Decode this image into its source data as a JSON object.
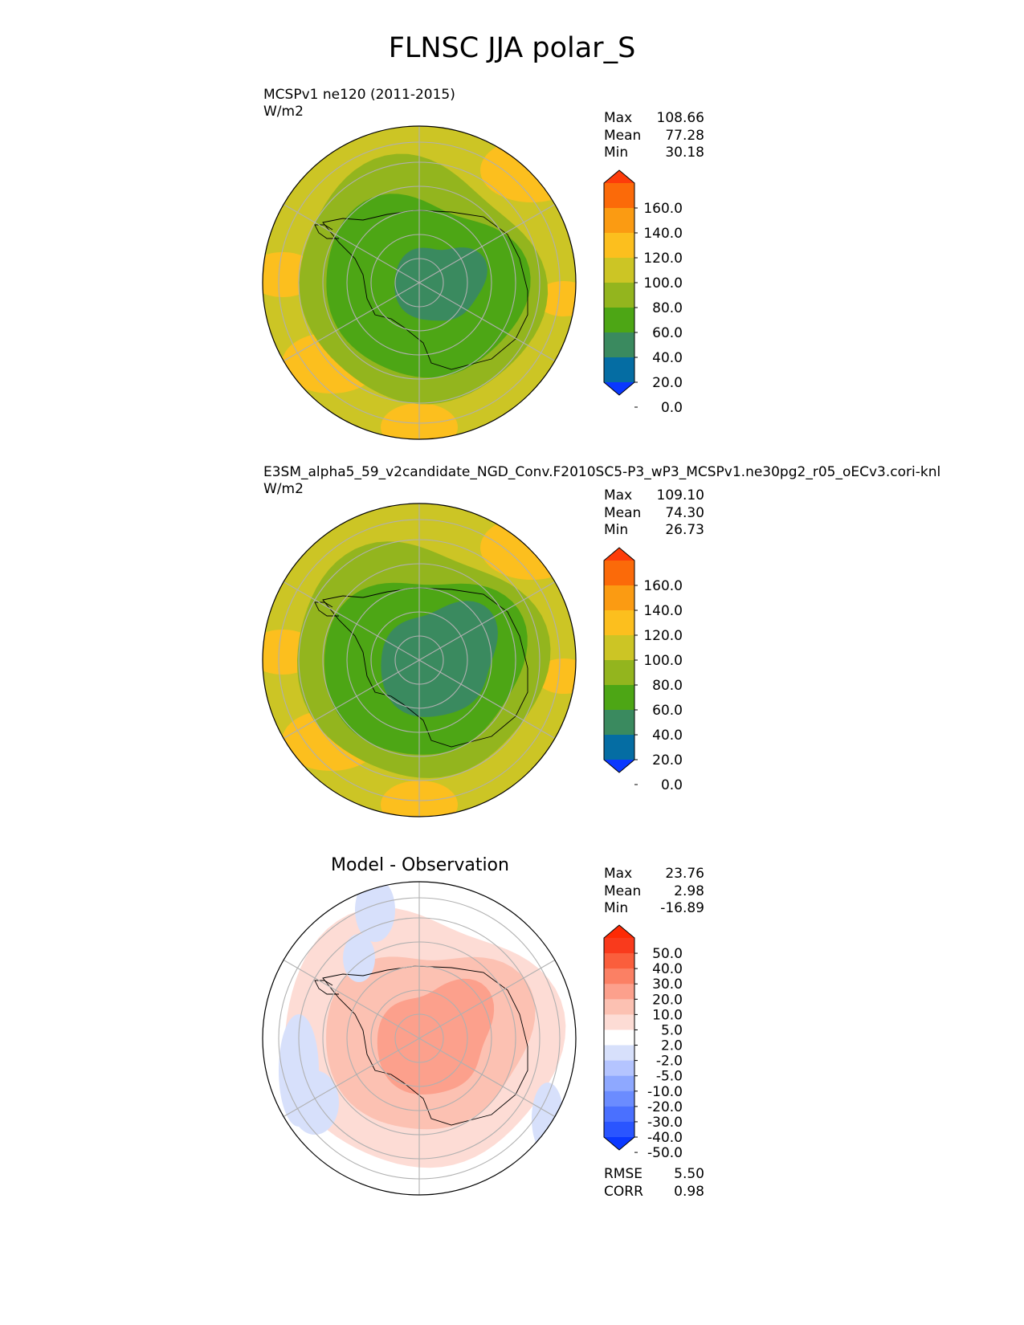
{
  "figure": {
    "title": "FLNSC JJA polar_S"
  },
  "chart_data": [
    {
      "type": "heatmap",
      "projection": "south-polar-stereographic",
      "title": "MCSPv1 ne120 (2011-2015)",
      "units": "W/m2",
      "stats": {
        "max": "108.66",
        "mean": "77.28",
        "min": "30.18"
      },
      "colorbar": {
        "levels": [
          0,
          20,
          40,
          60,
          80,
          100,
          120,
          140,
          160
        ],
        "tick_labels": [
          "160.0",
          "140.0",
          "120.0",
          "100.0",
          "80.0",
          "60.0",
          "40.0",
          "20.0",
          "0.0"
        ],
        "colors": [
          "#0a38ff",
          "#056da3",
          "#3a8a5f",
          "#4da615",
          "#93b51e",
          "#ccc525",
          "#fcbf1e",
          "#fb9b12",
          "#fb6a09",
          "#fd3c0a"
        ],
        "extend": "both"
      }
    },
    {
      "type": "heatmap",
      "projection": "south-polar-stereographic",
      "title": "E3SM_alpha5_59_v2candidate_NGD_Conv.F2010SC5-P3_wP3_MCSPv1.ne30pg2_r05_oECv3.cori-knl",
      "units": "W/m2",
      "stats": {
        "max": "109.10",
        "mean": "74.30",
        "min": "26.73"
      },
      "colorbar": {
        "levels": [
          0,
          20,
          40,
          60,
          80,
          100,
          120,
          140,
          160
        ],
        "tick_labels": [
          "160.0",
          "140.0",
          "120.0",
          "100.0",
          "80.0",
          "60.0",
          "40.0",
          "20.0",
          "0.0"
        ],
        "colors": [
          "#0a38ff",
          "#056da3",
          "#3a8a5f",
          "#4da615",
          "#93b51e",
          "#ccc525",
          "#fcbf1e",
          "#fb9b12",
          "#fb6a09",
          "#fd3c0a"
        ],
        "extend": "both"
      }
    },
    {
      "type": "heatmap",
      "projection": "south-polar-stereographic",
      "title": "Model - Observation",
      "stats": {
        "max": "23.76",
        "mean": "2.98",
        "min": "-16.89",
        "rmse": "5.50",
        "corr": "0.98"
      },
      "stat_labels": {
        "max": "Max",
        "mean": "Mean",
        "min": "Min",
        "rmse": "RMSE",
        "corr": "CORR"
      },
      "colorbar": {
        "levels": [
          -50,
          -40,
          -30,
          -20,
          -10,
          -5,
          -2,
          2,
          5,
          10,
          20,
          30,
          40,
          50
        ],
        "tick_labels": [
          "50.0",
          "40.0",
          "30.0",
          "20.0",
          "10.0",
          "5.0",
          "2.0",
          "-2.0",
          "-5.0",
          "-10.0",
          "-20.0",
          "-30.0",
          "-40.0",
          "-50.0"
        ],
        "colors": [
          "#0a38ff",
          "#2a55ff",
          "#4a70ff",
          "#6b8cff",
          "#8ea8ff",
          "#b4c4ff",
          "#d7e0fb",
          "#ffffff",
          "#fddcd5",
          "#fcc1b2",
          "#fca08c",
          "#fb8064",
          "#fa5e3c",
          "#f93a1c",
          "#fd2a05"
        ],
        "extend": "both"
      }
    }
  ],
  "labels": {
    "max": "Max",
    "mean": "Mean",
    "min": "Min"
  }
}
